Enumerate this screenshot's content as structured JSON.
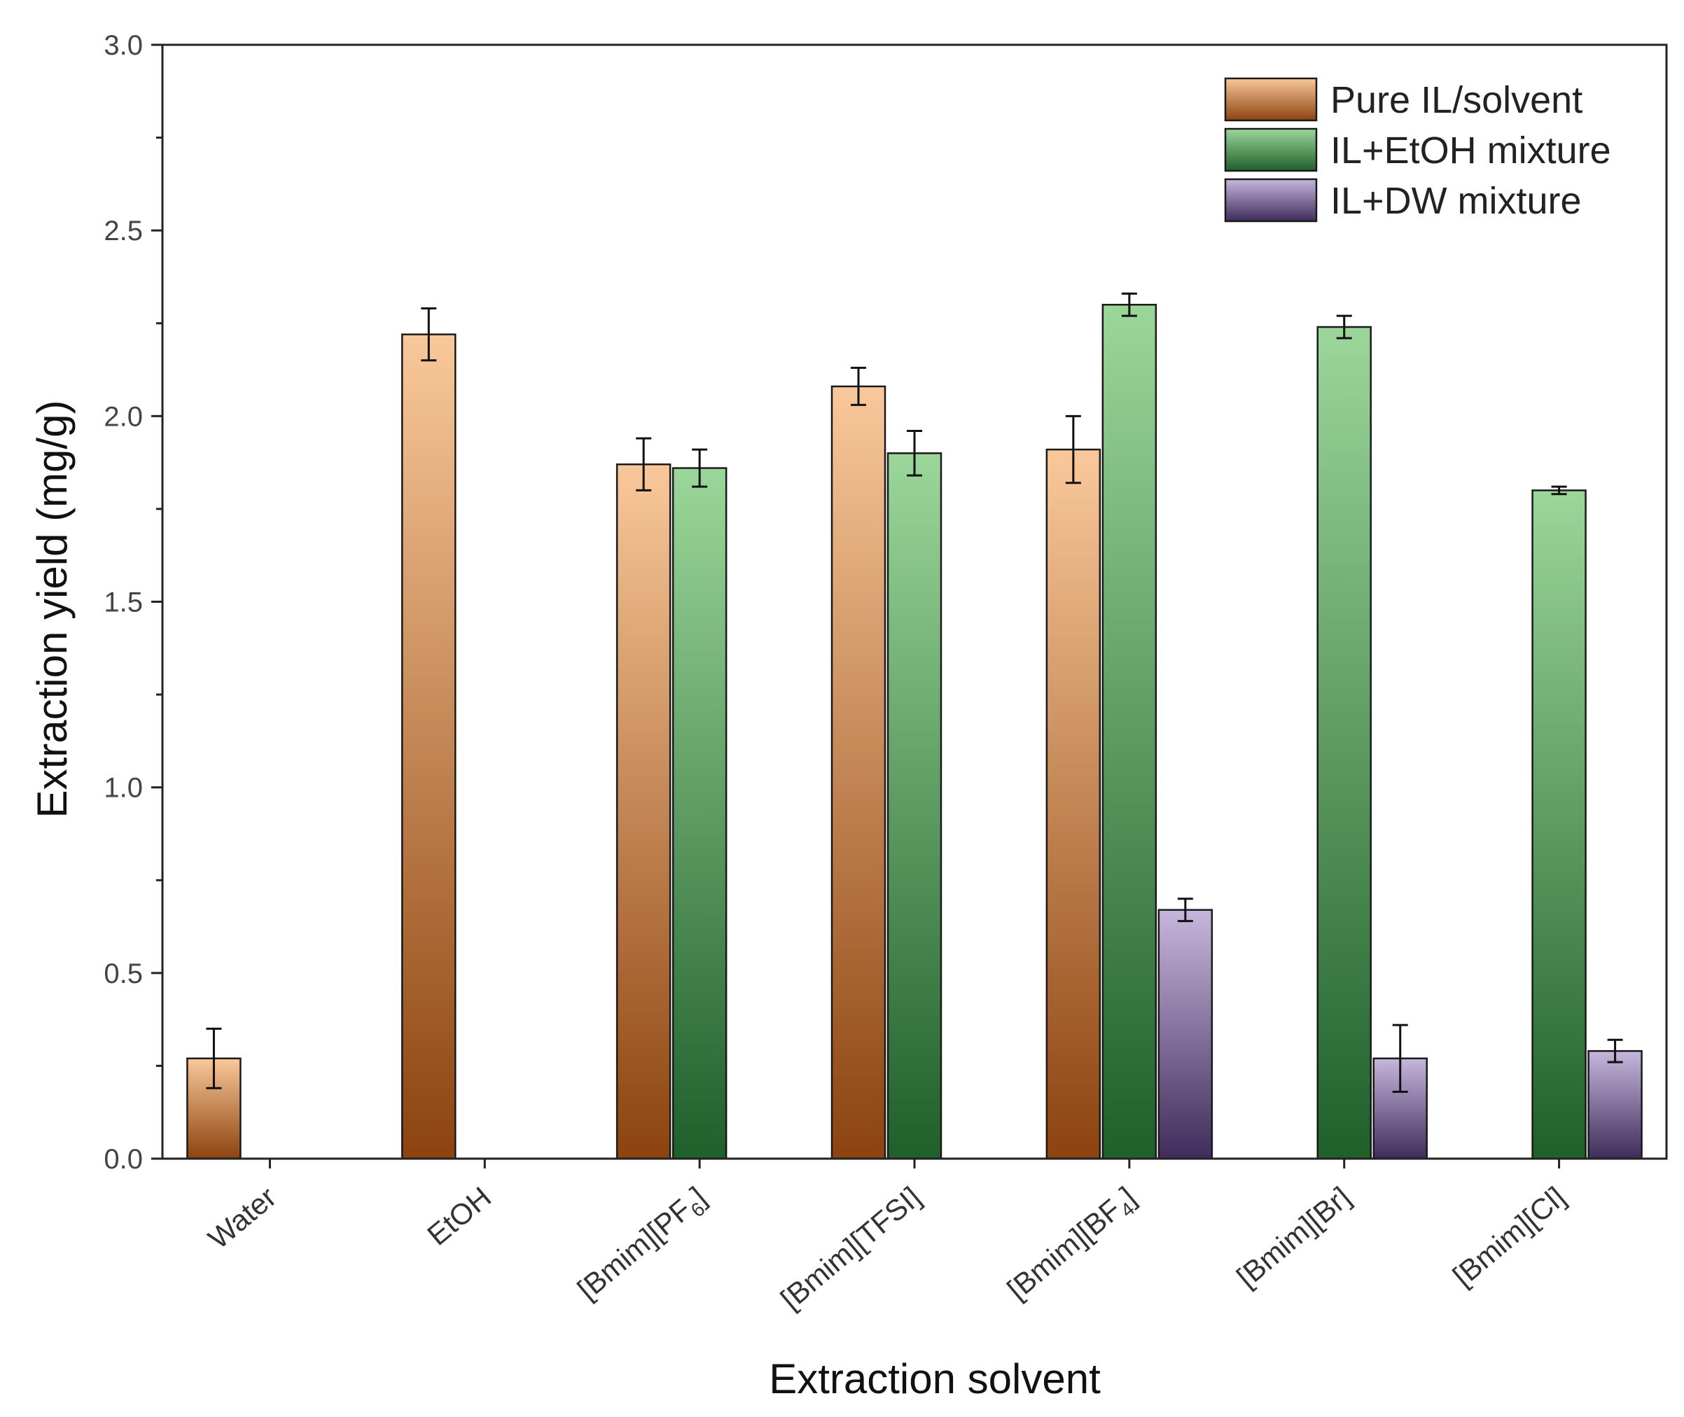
{
  "chart_data": {
    "type": "bar",
    "title": "",
    "xlabel": "Extraction solvent",
    "ylabel": "Extraction yield (mg/g)",
    "ylim": [
      0,
      3.0
    ],
    "yticks": [
      "0.0",
      "0.5",
      "1.0",
      "1.5",
      "2.0",
      "2.5",
      "3.0"
    ],
    "grid": false,
    "legend_position": "top-right",
    "categories": [
      {
        "name": "Water",
        "base": "Water",
        "sub": ""
      },
      {
        "name": "EtOH",
        "base": "EtOH",
        "sub": ""
      },
      {
        "name": "[Bmim][PF6]",
        "base": "[Bmim][PF",
        "sub": "6",
        "close": "]"
      },
      {
        "name": "[Bmim][TFSI]",
        "base": "[Bmim][TFSI]",
        "sub": ""
      },
      {
        "name": "[Bmim][BF4]",
        "base": "[Bmim][BF",
        "sub": "4",
        "close": "]"
      },
      {
        "name": "[Bmim][Br]",
        "base": "[Bmim][Br]",
        "sub": ""
      },
      {
        "name": "[Bmim][Cl]",
        "base": "[Bmim][Cl]",
        "sub": ""
      }
    ],
    "series": [
      {
        "name": "Pure IL/solvent",
        "gradient_top": "#f9c89a",
        "gradient_bottom": "#8c430f",
        "values": [
          0.27,
          2.22,
          1.87,
          2.08,
          1.91,
          null,
          null
        ],
        "errors": [
          0.08,
          0.07,
          0.07,
          0.05,
          0.09,
          null,
          null
        ]
      },
      {
        "name": "IL+EtOH mixture",
        "gradient_top": "#9bd79a",
        "gradient_bottom": "#1f5f2a",
        "values": [
          null,
          null,
          1.86,
          1.9,
          2.3,
          2.24,
          1.8
        ],
        "errors": [
          null,
          null,
          0.05,
          0.06,
          0.03,
          0.03,
          0.01
        ]
      },
      {
        "name": "IL+DW mixture",
        "gradient_top": "#c6b6dc",
        "gradient_bottom": "#3f2c5a",
        "values": [
          null,
          null,
          null,
          null,
          0.67,
          0.27,
          0.29
        ],
        "errors": [
          null,
          null,
          null,
          null,
          0.03,
          0.09,
          0.03
        ]
      }
    ]
  }
}
